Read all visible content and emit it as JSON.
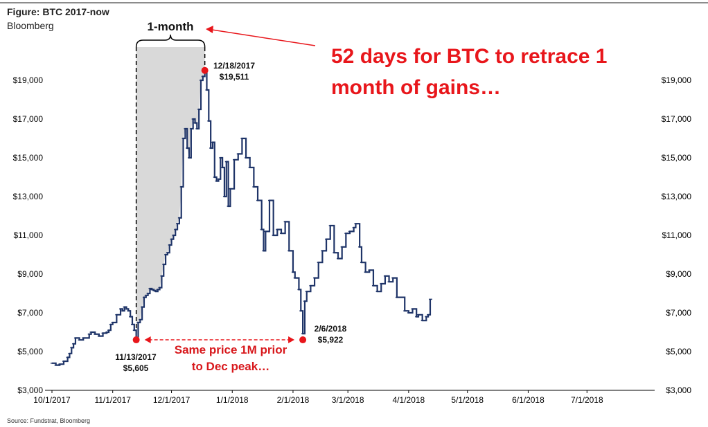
{
  "header": {
    "title": "Figure: BTC 2017-now",
    "subtitle": "Bloomberg"
  },
  "footer": {
    "source": "Source: Fundstrat, Bloomberg"
  },
  "colors": {
    "series": "#1f3468",
    "annotation_red": "#e8161b",
    "shade": "#d9d9d9",
    "axis": "#000000"
  },
  "annotations": {
    "headline_line1": "52 days for BTC to retrace 1",
    "headline_line2": "month of gains…",
    "bracket_label": "1-month",
    "peak_date": "12/18/2017",
    "peak_value": "$19,511",
    "low1_date": "11/13/2017",
    "low1_value": "$5,605",
    "low2_date": "2/6/2018",
    "low2_value": "$5,922",
    "same_price_line1": "Same price 1M prior",
    "same_price_line2": "to Dec peak…"
  },
  "chart_data": {
    "type": "line",
    "title": "Figure: BTC 2017-now",
    "xlabel": "",
    "ylabel": "",
    "x_ticks": [
      "10/1/2017",
      "11/1/2017",
      "12/1/2017",
      "1/1/2018",
      "2/1/2018",
      "3/1/2018",
      "4/1/2018",
      "5/1/2018",
      "6/1/2018",
      "7/1/2018"
    ],
    "y_ticks": [
      "$3,000",
      "$5,000",
      "$7,000",
      "$9,000",
      "$11,000",
      "$13,000",
      "$15,000",
      "$17,000",
      "$19,000"
    ],
    "x_range": [
      "2017-10-01",
      "2018-08-01"
    ],
    "ylim": [
      3000,
      21000
    ],
    "grid": false,
    "series": [
      {
        "x": [
          "2017-10-01",
          "2017-10-03",
          "2017-10-05",
          "2017-10-07",
          "2017-10-09",
          "2017-10-10",
          "2017-10-11",
          "2017-10-12",
          "2017-10-13",
          "2017-10-15",
          "2017-10-17",
          "2017-10-19",
          "2017-10-20",
          "2017-10-21",
          "2017-10-23",
          "2017-10-25",
          "2017-10-27",
          "2017-10-29",
          "2017-10-30",
          "2017-10-31",
          "2017-11-01",
          "2017-11-03",
          "2017-11-05",
          "2017-11-06",
          "2017-11-07",
          "2017-11-08",
          "2017-11-09",
          "2017-11-10",
          "2017-11-11",
          "2017-11-12",
          "2017-11-13",
          "2017-11-14",
          "2017-11-15",
          "2017-11-16",
          "2017-11-17",
          "2017-11-18",
          "2017-11-19",
          "2017-11-20",
          "2017-11-21",
          "2017-11-22",
          "2017-11-23",
          "2017-11-24",
          "2017-11-25",
          "2017-11-26",
          "2017-11-27",
          "2017-11-28",
          "2017-11-29",
          "2017-11-30",
          "2017-12-01",
          "2017-12-02",
          "2017-12-03",
          "2017-12-04",
          "2017-12-05",
          "2017-12-06",
          "2017-12-07",
          "2017-12-08",
          "2017-12-09",
          "2017-12-10",
          "2017-12-11",
          "2017-12-12",
          "2017-12-13",
          "2017-12-14",
          "2017-12-15",
          "2017-12-16",
          "2017-12-17",
          "2017-12-18",
          "2017-12-19",
          "2017-12-20",
          "2017-12-21",
          "2017-12-22",
          "2017-12-23",
          "2017-12-24",
          "2017-12-25",
          "2017-12-26",
          "2017-12-27",
          "2017-12-28",
          "2017-12-29",
          "2017-12-30",
          "2017-12-31",
          "2018-01-02",
          "2018-01-04",
          "2018-01-06",
          "2018-01-08",
          "2018-01-10",
          "2018-01-12",
          "2018-01-14",
          "2018-01-16",
          "2018-01-17",
          "2018-01-18",
          "2018-01-20",
          "2018-01-22",
          "2018-01-24",
          "2018-01-26",
          "2018-01-28",
          "2018-01-30",
          "2018-02-01",
          "2018-02-02",
          "2018-02-04",
          "2018-02-05",
          "2018-02-06",
          "2018-02-07",
          "2018-02-08",
          "2018-02-10",
          "2018-02-12",
          "2018-02-14",
          "2018-02-16",
          "2018-02-18",
          "2018-02-20",
          "2018-02-22",
          "2018-02-24",
          "2018-02-26",
          "2018-02-28",
          "2018-03-02",
          "2018-03-04",
          "2018-03-05",
          "2018-03-07",
          "2018-03-08",
          "2018-03-10",
          "2018-03-12",
          "2018-03-14",
          "2018-03-16",
          "2018-03-18",
          "2018-03-20",
          "2018-03-22",
          "2018-03-24",
          "2018-03-26",
          "2018-03-28",
          "2018-03-30",
          "2018-04-01",
          "2018-04-03",
          "2018-04-05",
          "2018-04-06",
          "2018-04-08",
          "2018-04-10",
          "2018-04-11",
          "2018-04-12"
        ],
        "y": [
          4400,
          4300,
          4350,
          4500,
          4700,
          4900,
          5200,
          5400,
          5700,
          5600,
          5700,
          5700,
          5900,
          6000,
          5900,
          5800,
          5950,
          6000,
          6100,
          6400,
          6500,
          6900,
          7200,
          7100,
          7300,
          7200,
          7100,
          6800,
          6400,
          6100,
          5605,
          6500,
          6650,
          7300,
          7800,
          7900,
          8000,
          8250,
          8200,
          8150,
          8100,
          8200,
          8300,
          8900,
          9500,
          10000,
          10100,
          10500,
          10800,
          11000,
          11300,
          11600,
          11900,
          13500,
          16000,
          16500,
          15500,
          15000,
          16500,
          17000,
          16800,
          16500,
          17500,
          19000,
          19200,
          19511,
          18500,
          16900,
          15500,
          15800,
          14000,
          13800,
          13900,
          15000,
          14500,
          13000,
          14800,
          12500,
          13400,
          14900,
          15200,
          16000,
          15000,
          14500,
          13500,
          12800,
          11300,
          10200,
          11200,
          12800,
          11000,
          11300,
          11100,
          11700,
          10200,
          9100,
          8800,
          8200,
          7100,
          5922,
          7600,
          8100,
          8400,
          8800,
          9600,
          10200,
          10800,
          11500,
          10100,
          9800,
          10400,
          11100,
          11200,
          11400,
          11600,
          10400,
          9600,
          9100,
          9200,
          8400,
          8100,
          8500,
          8900,
          8600,
          8800,
          7800,
          7800,
          7100,
          7000,
          7200,
          6800,
          6900,
          6600,
          6800,
          6900,
          7700
        ]
      }
    ]
  }
}
